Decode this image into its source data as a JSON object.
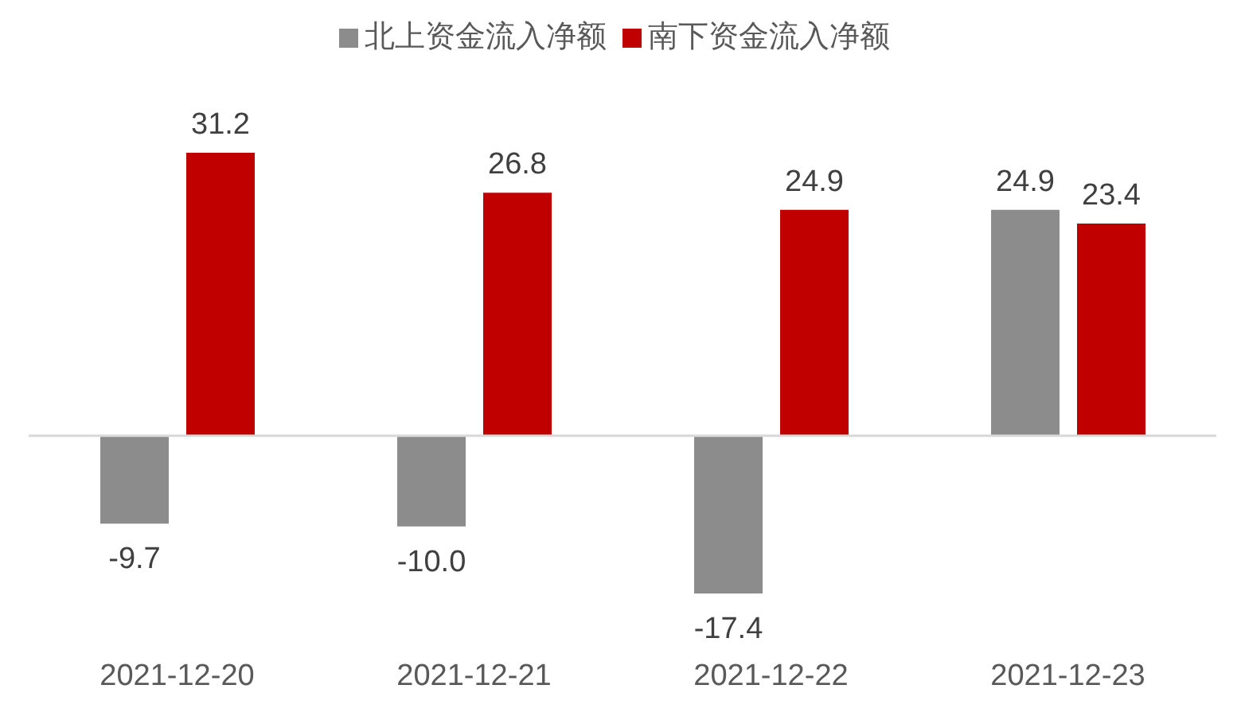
{
  "chart_data": {
    "type": "bar",
    "categories": [
      "2021-12-20",
      "2021-12-21",
      "2021-12-22",
      "2021-12-23"
    ],
    "series": [
      {
        "name": "北上资金流入净额",
        "color": "#8c8c8c",
        "values": [
          -9.7,
          -10.0,
          -17.4,
          24.9
        ],
        "value_labels": [
          "-9.7",
          "-10.0",
          "-17.4",
          "24.9"
        ]
      },
      {
        "name": "南下资金流入净额",
        "color": "#c00000",
        "values": [
          31.2,
          26.8,
          24.9,
          23.4
        ],
        "value_labels": [
          "31.2",
          "26.8",
          "24.9",
          "23.4"
        ]
      }
    ],
    "legend": "top"
  }
}
